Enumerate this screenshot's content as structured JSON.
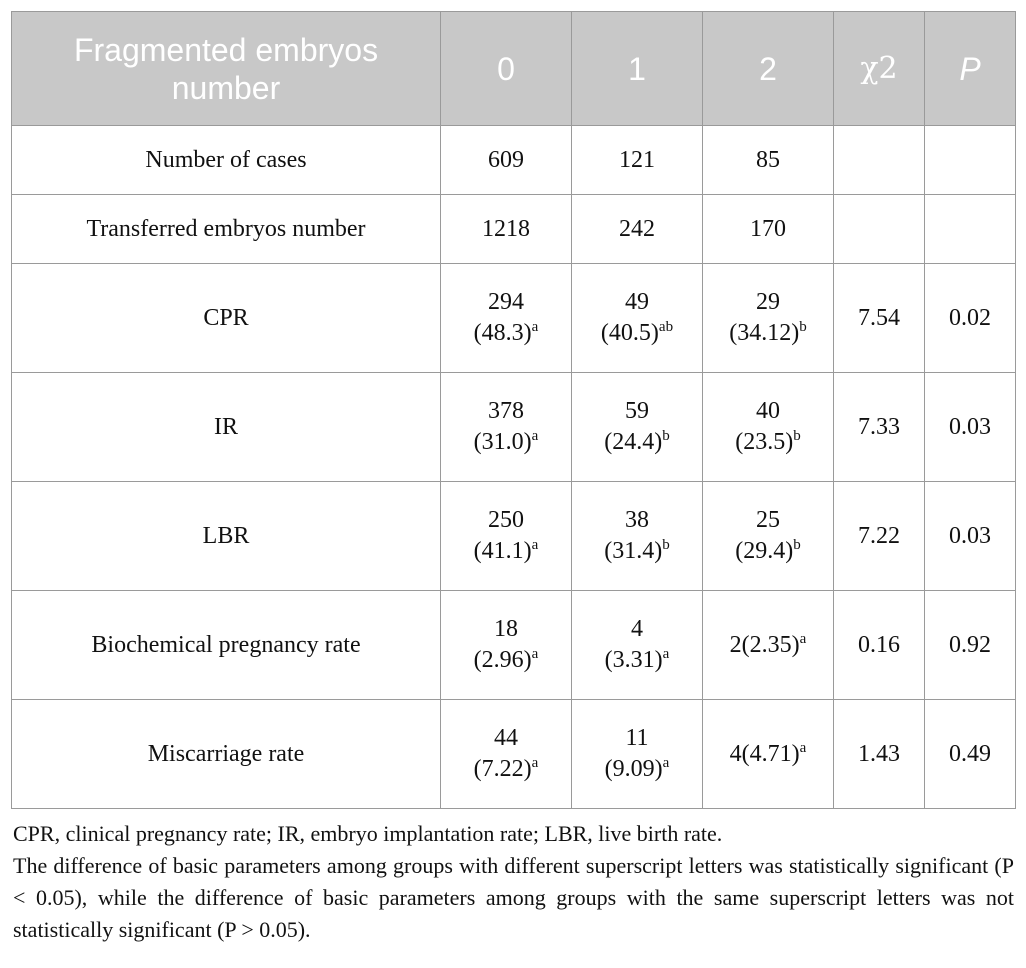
{
  "table": {
    "headers": [
      "Fragmented embryos number",
      "0",
      "1",
      "2",
      "χ2",
      "P"
    ],
    "rows": [
      {
        "label": "Number of cases",
        "cells": [
          {
            "value": "609",
            "sup": ""
          },
          {
            "value": "121",
            "sup": ""
          },
          {
            "value": "85",
            "sup": ""
          }
        ],
        "chi2": "",
        "p": ""
      },
      {
        "label": "Transferred embryos number",
        "cells": [
          {
            "value": "1218",
            "sup": ""
          },
          {
            "value": "242",
            "sup": ""
          },
          {
            "value": "170",
            "sup": ""
          }
        ],
        "chi2": "",
        "p": ""
      },
      {
        "label": "CPR",
        "cells": [
          {
            "value": "294",
            "pct": "(48.3)",
            "sup": "a"
          },
          {
            "value": "49",
            "pct": "(40.5)",
            "sup": "ab"
          },
          {
            "value": "29",
            "pct": "(34.12)",
            "sup": "b"
          }
        ],
        "chi2": "7.54",
        "p": "0.02"
      },
      {
        "label": "IR",
        "cells": [
          {
            "value": "378",
            "pct": "(31.0)",
            "sup": "a"
          },
          {
            "value": "59",
            "pct": "(24.4)",
            "sup": "b"
          },
          {
            "value": "40",
            "pct": "(23.5)",
            "sup": "b"
          }
        ],
        "chi2": "7.33",
        "p": "0.03"
      },
      {
        "label": "LBR",
        "cells": [
          {
            "value": "250",
            "pct": "(41.1)",
            "sup": "a"
          },
          {
            "value": "38",
            "pct": "(31.4)",
            "sup": "b"
          },
          {
            "value": "25",
            "pct": "(29.4)",
            "sup": "b"
          }
        ],
        "chi2": "7.22",
        "p": "0.03"
      },
      {
        "label": "Biochemical pregnancy rate",
        "cells": [
          {
            "value": "18",
            "pct": "(2.96)",
            "sup": "a"
          },
          {
            "value": "4",
            "pct": "(3.31)",
            "sup": "a"
          },
          {
            "value": "2(2.35)",
            "sup": "a"
          }
        ],
        "chi2": "0.16",
        "p": "0.92"
      },
      {
        "label": "Miscarriage rate",
        "cells": [
          {
            "value": "44",
            "pct": "(7.22)",
            "sup": "a"
          },
          {
            "value": "11",
            "pct": "(9.09)",
            "sup": "a"
          },
          {
            "value": "4(4.71)",
            "sup": "a"
          }
        ],
        "chi2": "1.43",
        "p": "0.49"
      }
    ]
  },
  "notes": {
    "abbreviations": "CPR, clinical pregnancy rate; IR, embryo implantation rate; LBR, live birth rate.",
    "significance": "The difference of basic parameters among groups with different superscript letters was statistically significant (P < 0.05), while the difference of basic parameters among groups with the same superscript letters was not statistically significant (P > 0.05)."
  }
}
